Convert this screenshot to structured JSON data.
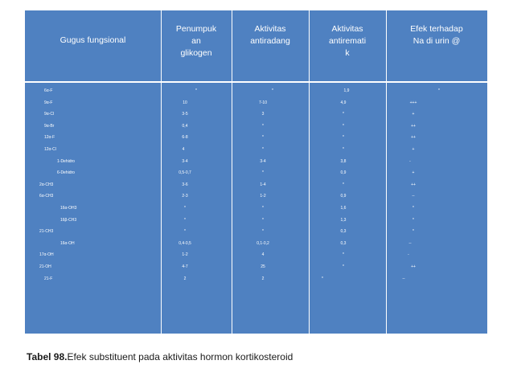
{
  "table": {
    "headers": [
      "Gugus fungsional",
      "Penumpuk\nan\nglikogen",
      "Aktivitas\nantiradang",
      "Aktivitas\nantiremati\nk",
      "Efek terhadap\nNa di urin @"
    ],
    "rows": [
      [
        "6α-F",
        "*",
        "*",
        "1,9",
        "*"
      ],
      [
        "9α-F",
        "10",
        "7-10",
        "4,9",
        "+++"
      ],
      [
        "9α-Cl",
        "3-5",
        "3",
        "*",
        "+"
      ],
      [
        "9α-Br",
        "0,4",
        "*",
        "*",
        "++"
      ],
      [
        "12α-F",
        "6-8",
        "*",
        "*",
        "++"
      ],
      [
        "12α-Cl",
        "4",
        "*",
        "*",
        "+"
      ],
      [
        "1-Dehidro",
        "3-4",
        "3-4",
        "3,8",
        "-"
      ],
      [
        "6-Dehidro",
        "0,5-0,7",
        "*",
        "0,9",
        "+"
      ],
      [
        "2α-CH3",
        "3-6",
        "1-4",
        "*",
        "++"
      ],
      [
        "6α-CH3",
        "2-3",
        "1-2",
        "0,9",
        "--"
      ],
      [
        "16α-OH3",
        "*",
        "*",
        "1,6",
        "*"
      ],
      [
        "16β-CH3",
        "*",
        "*",
        "1,3",
        "*"
      ],
      [
        "21-CH3",
        "*",
        "*",
        "0,3",
        "*"
      ],
      [
        "16α-OH",
        "0,4-0,5",
        "0,1-0,2",
        "0,3",
        "--"
      ],
      [
        "17α-OH",
        "1-2",
        "4",
        "*",
        "-"
      ],
      [
        "21-OH",
        "4-7",
        "25",
        "*",
        "++"
      ],
      [
        "21-F",
        "2",
        "2",
        "*",
        "--"
      ]
    ]
  },
  "caption": {
    "label": "Tabel  98.",
    "text": "Efek substituent pada aktivitas hormon kortikosteroid"
  }
}
